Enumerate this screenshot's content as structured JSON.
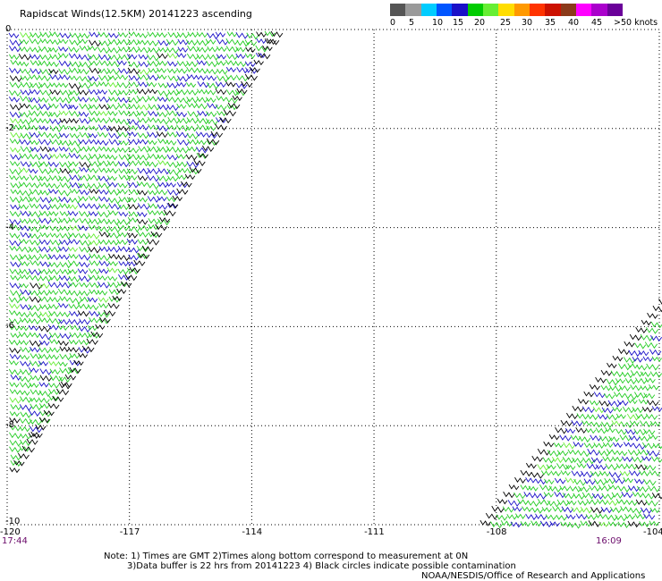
{
  "header": {
    "title": "Rapidscat Winds(12.5KM) 20141223 ascending"
  },
  "legend": {
    "colors": [
      "#555555",
      "#9a9a9a",
      "#00ccff",
      "#0055ff",
      "#1a10c8",
      "#00cc00",
      "#66ee33",
      "#ffdd00",
      "#ff9900",
      "#ff3300",
      "#cc1100",
      "#8b3a1a",
      "#ff00ff",
      "#aa00cc",
      "#6a0099"
    ],
    "labels": [
      "0",
      "5",
      "10",
      "15",
      "20",
      "25",
      "30",
      "35",
      "40",
      "45",
      ">50 knots"
    ]
  },
  "chart_data": {
    "type": "scatter",
    "subtype": "wind-barbs-map",
    "xlim": [
      -120,
      -104
    ],
    "ylim": [
      -10,
      0
    ],
    "x_ticks": [
      "-120",
      "-117",
      "-114",
      "-111",
      "-108",
      "-104"
    ],
    "y_ticks": [
      "0",
      "-2",
      "-4",
      "-6",
      "-8",
      "-10"
    ],
    "grid": true,
    "swaths": [
      {
        "bounds": "west of line from (-120,-9.2) to (-113.3,0)",
        "dominant_speeds_knots": [
          10,
          15,
          20
        ]
      },
      {
        "bounds": "east of line from (-108.5,-10) to (-104,-5.4)",
        "dominant_speeds_knots": [
          10,
          15,
          20
        ]
      }
    ]
  },
  "times": {
    "left": "17:44",
    "right": "16:09"
  },
  "notes": {
    "line1": "Note: 1) Times are GMT 2)Times along bottom correspond to measurement at 0N",
    "line2": "3)Data buffer is 22 hrs from 20141223 4) Black circles indicate possible contamination",
    "credit": "NOAA/NESDIS/Office of Research and Applications"
  }
}
